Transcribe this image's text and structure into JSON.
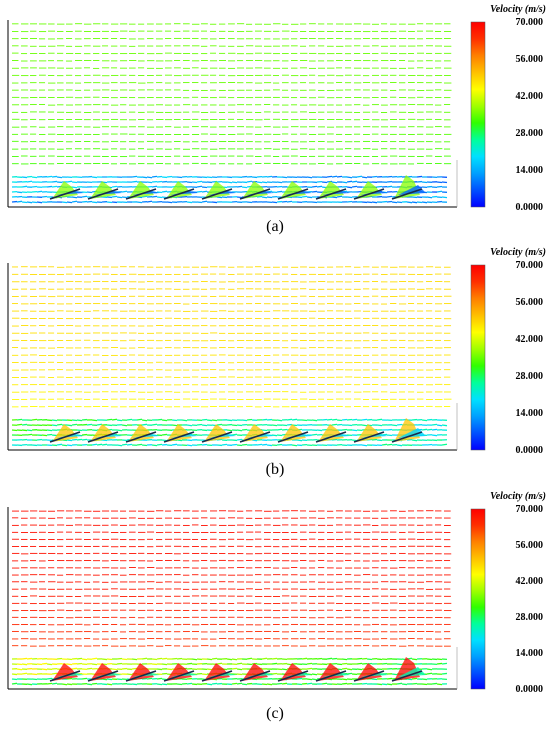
{
  "figure": {
    "colors": {
      "background": "#ffffff",
      "frame": "#000000",
      "blade": "#1a2a4a"
    },
    "colorbar_stops": [
      "#0000ff",
      "#0050ff",
      "#00a0ff",
      "#00e0ff",
      "#00ff9a",
      "#30ff00",
      "#a0ff00",
      "#ffff00",
      "#ffc000",
      "#ff8000",
      "#ff3000",
      "#ff0000"
    ]
  },
  "chart_data": [
    {
      "type": "vector-field",
      "panel_label": "(a)",
      "colorbar_title": "Velocity (m/s)",
      "colorbar_ticks": [
        "70.000",
        "56.000",
        "42.000",
        "28.000",
        "14.000",
        "0.0000"
      ],
      "colorbar_range": [
        0,
        70
      ],
      "freestream_velocity": 35,
      "near_wall_velocity": 18,
      "wake_velocity": 8,
      "blade_count": 10
    },
    {
      "type": "vector-field",
      "panel_label": "(b)",
      "colorbar_title": "Velocity (m/s)",
      "colorbar_ticks": [
        "70.000",
        "56.000",
        "42.000",
        "28.000",
        "14.000",
        "0.0000"
      ],
      "colorbar_range": [
        0,
        70
      ],
      "freestream_velocity": 48,
      "near_wall_velocity": 30,
      "wake_velocity": 18,
      "blade_count": 10
    },
    {
      "type": "vector-field",
      "panel_label": "(c)",
      "colorbar_title": "Velocity (m/s)",
      "colorbar_ticks": [
        "70.000",
        "56.000",
        "42.000",
        "28.000",
        "14.000",
        "0.0000"
      ],
      "colorbar_range": [
        0,
        70
      ],
      "freestream_velocity": 68,
      "near_wall_velocity": 44,
      "wake_velocity": 24,
      "blade_count": 10
    }
  ]
}
